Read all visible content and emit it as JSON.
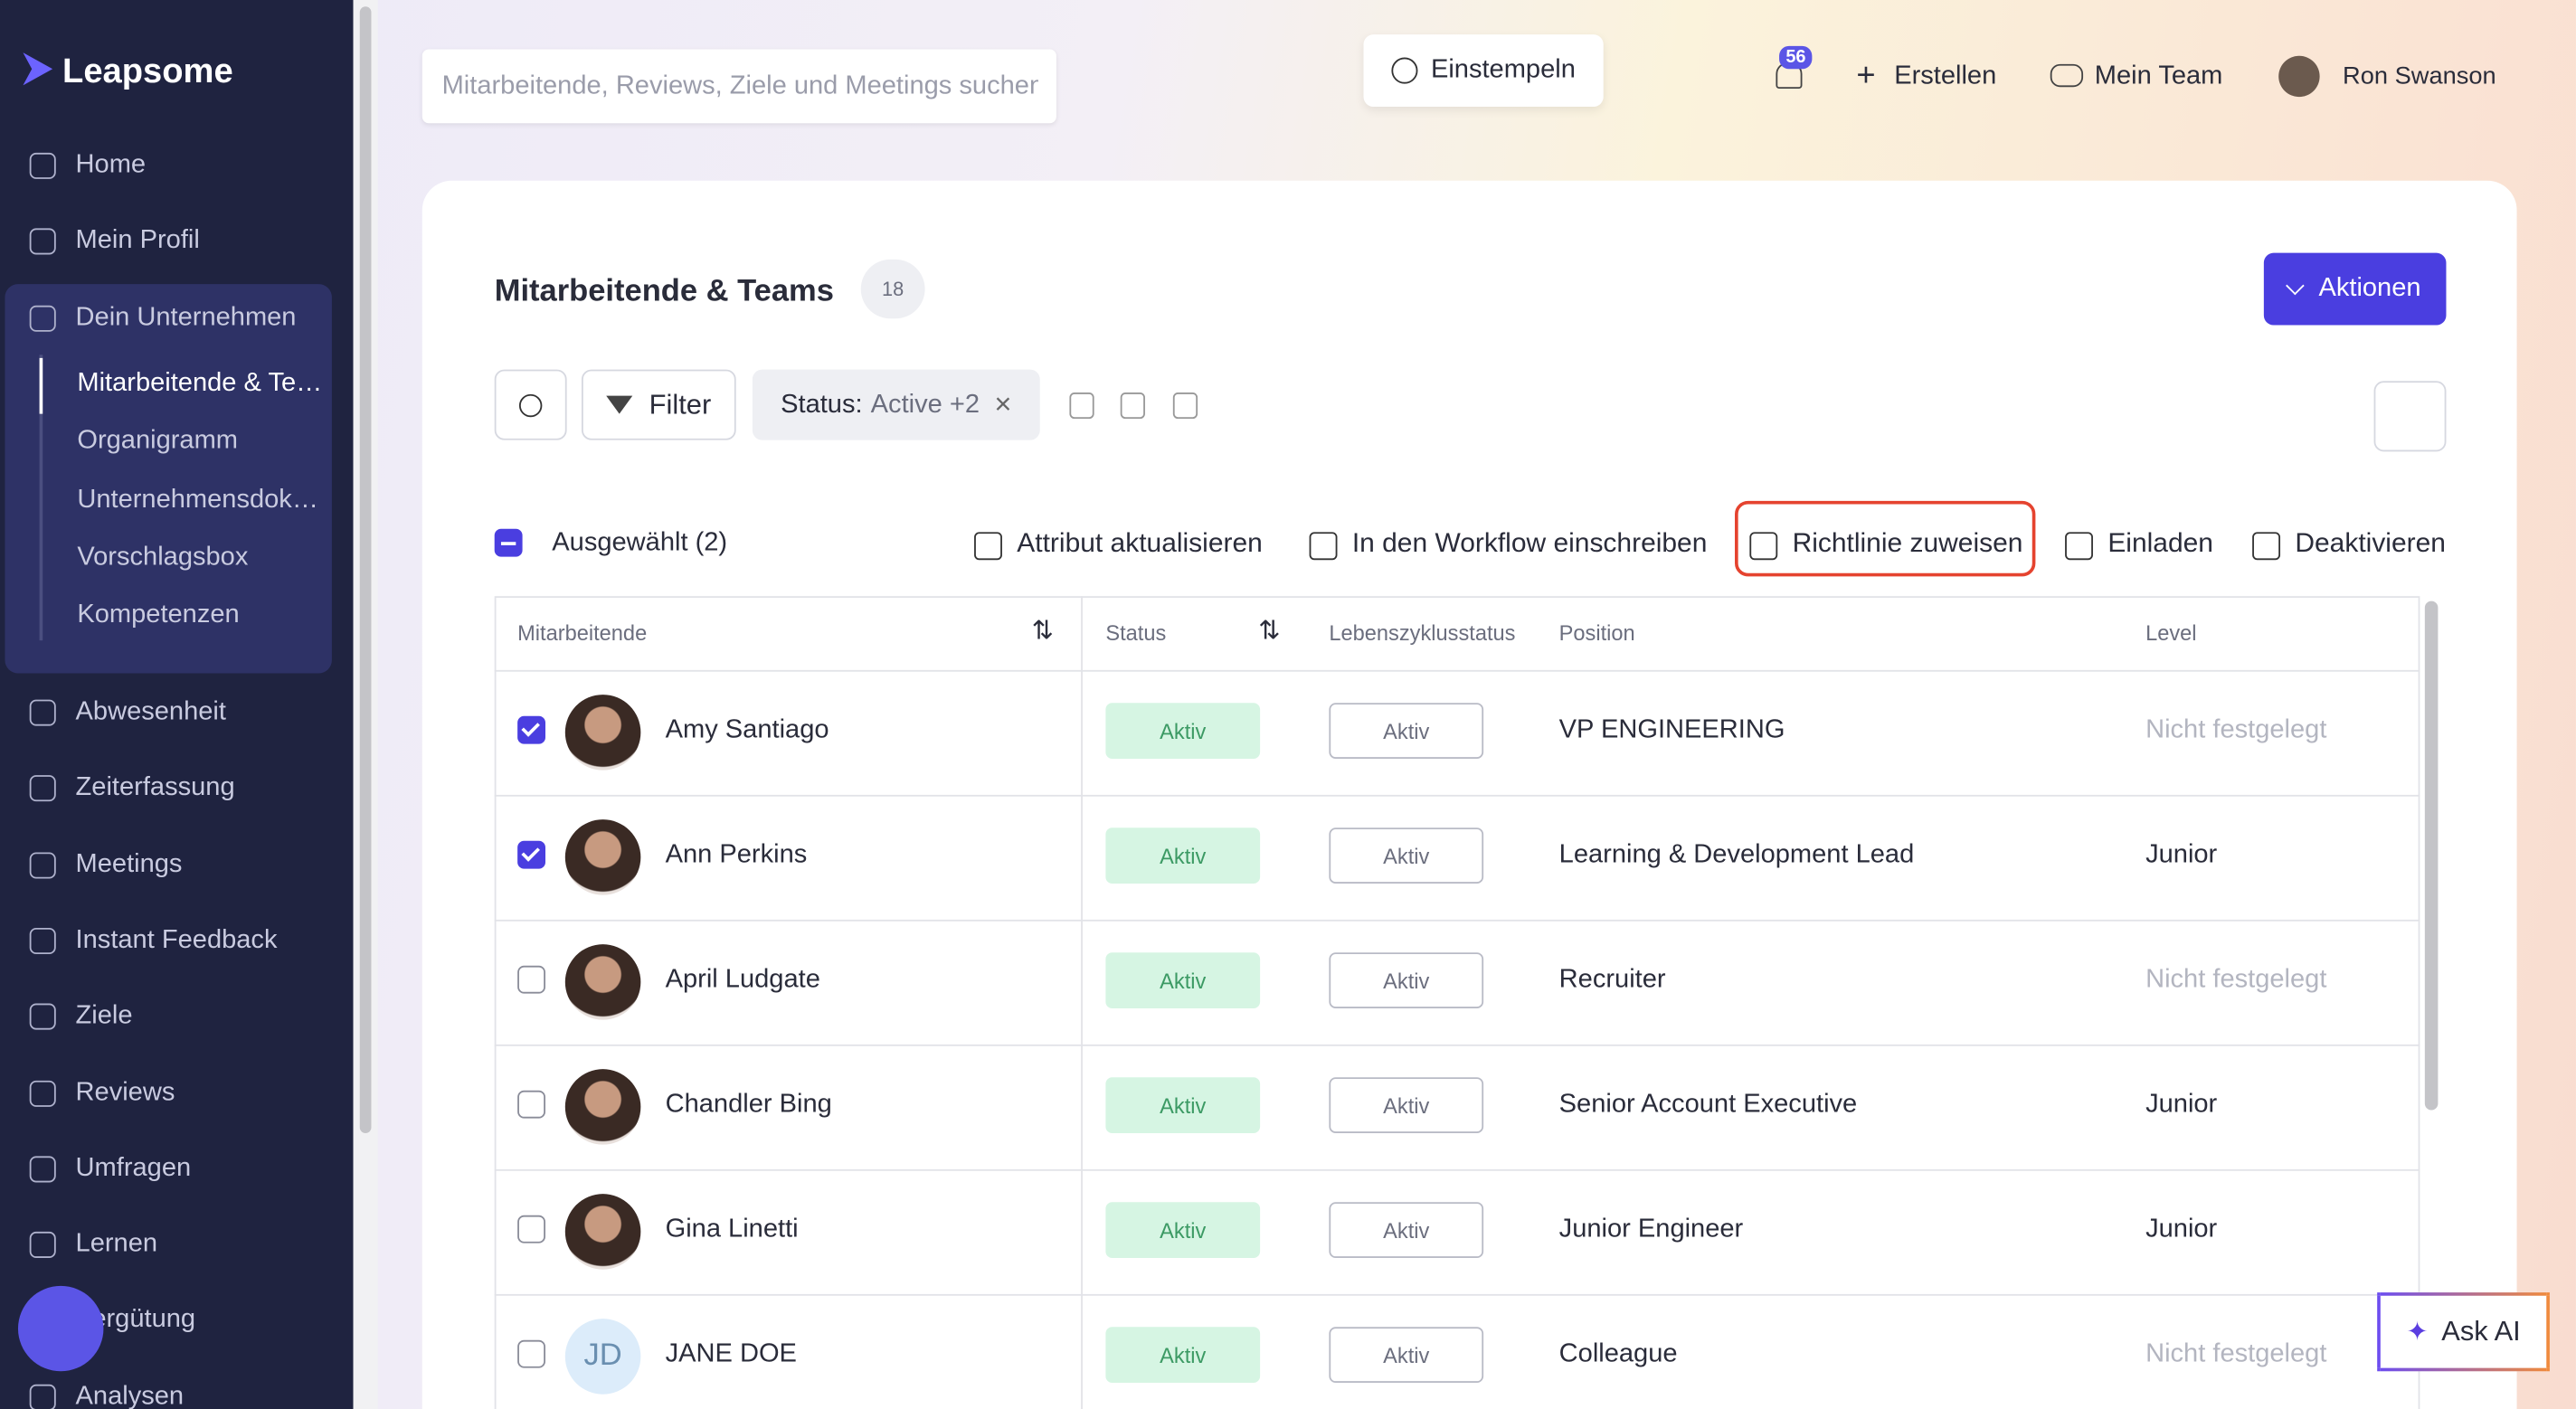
{
  "sidebar": {
    "brand": "Leapsome",
    "items": [
      "Home",
      "Mein Profil",
      "Dein Unternehmen"
    ],
    "subitems": [
      "Mitarbeitende & Teams",
      "Organigramm",
      "Unternehmensdokumente",
      "Vorschlagsbox",
      "Kompetenzen"
    ],
    "items2": [
      "Abwesenheit",
      "Zeiterfassung",
      "Meetings",
      "Instant Feedback",
      "Ziele",
      "Reviews",
      "Umfragen",
      "Lernen",
      "Vergütung",
      "Analysen"
    ]
  },
  "topbar": {
    "search_placeholder": "Mitarbeitende, Reviews, Ziele und Meetings suchen",
    "clock_in": "Einstempeln",
    "notifications": "56",
    "create": "Erstellen",
    "team": "Mein Team",
    "user": "Ron Swanson"
  },
  "panel": {
    "title": "Mitarbeitende & Teams",
    "count": "18",
    "actions": "Aktionen",
    "filter": "Filter",
    "status_label": "Status:",
    "status_value": "Active +2",
    "selected": "Ausgewählt (2)",
    "bulk_actions": [
      "Attribut aktualisieren",
      "In den Workflow einschreiben",
      "Richtlinie zuweisen",
      "Einladen",
      "Deaktivieren"
    ]
  },
  "table": {
    "columns": [
      "Mitarbeitende",
      "Status",
      "Lebenszyklusstatus",
      "Position",
      "Level"
    ],
    "rows": [
      {
        "name": "Amy Santiago",
        "checked": true,
        "status": "Aktiv",
        "lifecycle": "Aktiv",
        "position": "VP ENGINEERING",
        "level": "Nicht festgelegt"
      },
      {
        "name": "Ann Perkins",
        "checked": true,
        "status": "Aktiv",
        "lifecycle": "Aktiv",
        "position": "Learning & Development Lead",
        "level": "Junior"
      },
      {
        "name": "April Ludgate",
        "checked": false,
        "status": "Aktiv",
        "lifecycle": "Aktiv",
        "position": "Recruiter",
        "level": "Nicht festgelegt"
      },
      {
        "name": "Chandler Bing",
        "checked": false,
        "status": "Aktiv",
        "lifecycle": "Aktiv",
        "position": "Senior Account Executive",
        "level": "Junior"
      },
      {
        "name": "Gina Linetti",
        "checked": false,
        "status": "Aktiv",
        "lifecycle": "Aktiv",
        "position": "Junior Engineer",
        "level": "Junior"
      },
      {
        "name": "JANE DOE",
        "initials": "JD",
        "checked": false,
        "status": "Aktiv",
        "lifecycle": "Aktiv",
        "position": "Colleague",
        "level": "Nicht festgelegt"
      }
    ]
  },
  "ask_ai": "Ask AI"
}
